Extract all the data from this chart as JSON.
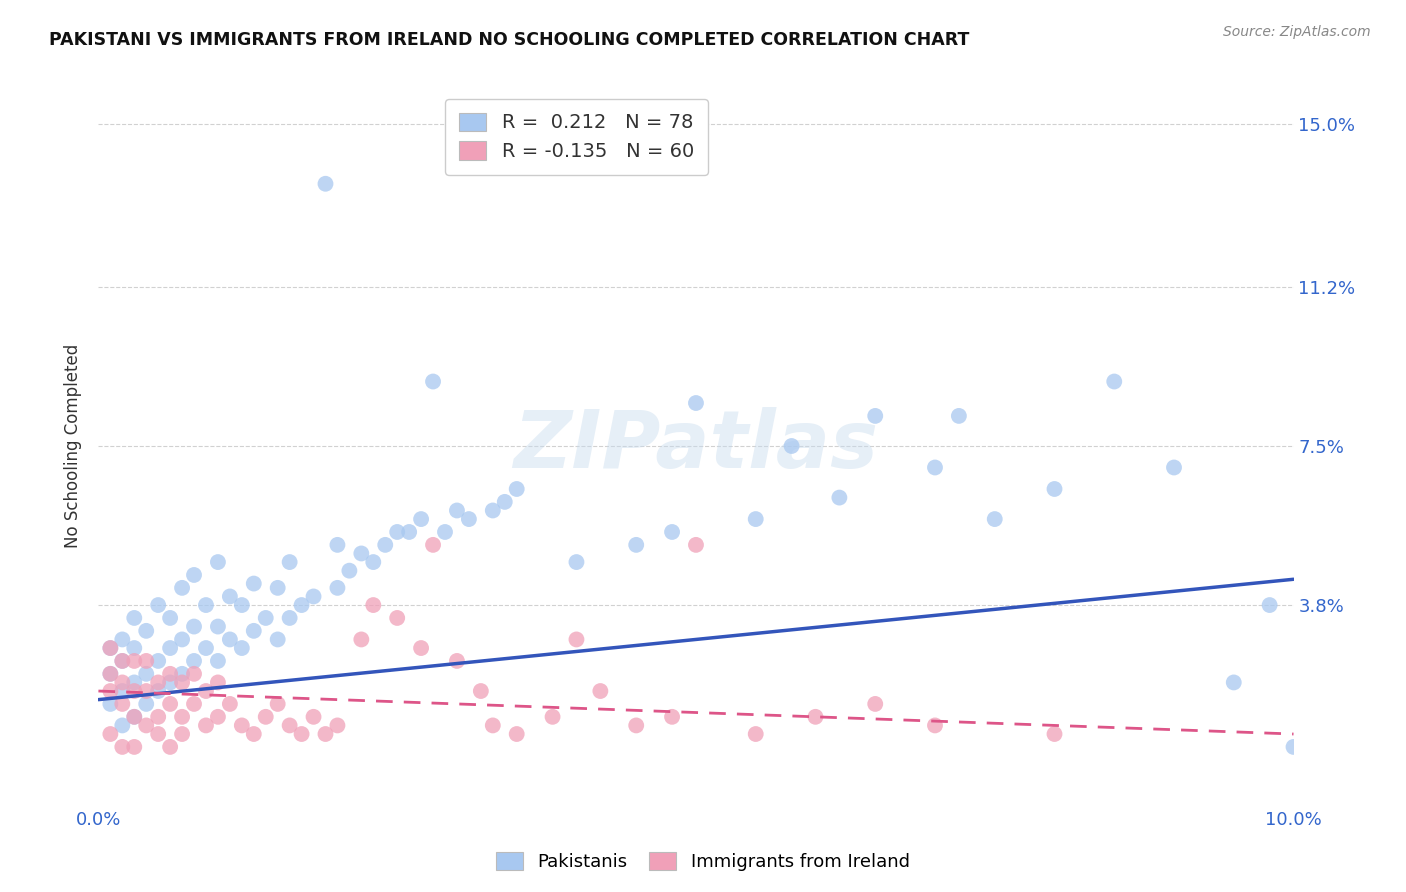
{
  "title": "PAKISTANI VS IMMIGRANTS FROM IRELAND NO SCHOOLING COMPLETED CORRELATION CHART",
  "source": "Source: ZipAtlas.com",
  "ylabel": "No Schooling Completed",
  "xlim": [
    0.0,
    0.1
  ],
  "ylim": [
    -0.008,
    0.158
  ],
  "right_yticks": [
    0.15,
    0.112,
    0.075,
    0.038
  ],
  "right_yticklabels": [
    "15.0%",
    "11.2%",
    "7.5%",
    "3.8%"
  ],
  "xticks": [
    0.0,
    0.02,
    0.04,
    0.06,
    0.08,
    0.1
  ],
  "xticklabels": [
    "0.0%",
    "",
    "",
    "",
    "",
    "10.0%"
  ],
  "blue_color": "#A8C8F0",
  "pink_color": "#F0A0B8",
  "blue_line_color": "#3355BB",
  "pink_line_color": "#DD5588",
  "watermark": "ZIPatlas",
  "blue_scatter_x": [
    0.001,
    0.001,
    0.001,
    0.002,
    0.002,
    0.002,
    0.002,
    0.003,
    0.003,
    0.003,
    0.003,
    0.004,
    0.004,
    0.004,
    0.005,
    0.005,
    0.005,
    0.006,
    0.006,
    0.006,
    0.007,
    0.007,
    0.007,
    0.008,
    0.008,
    0.008,
    0.009,
    0.009,
    0.01,
    0.01,
    0.01,
    0.011,
    0.011,
    0.012,
    0.012,
    0.013,
    0.013,
    0.014,
    0.015,
    0.015,
    0.016,
    0.016,
    0.017,
    0.018,
    0.019,
    0.02,
    0.02,
    0.021,
    0.022,
    0.023,
    0.024,
    0.025,
    0.026,
    0.027,
    0.028,
    0.029,
    0.03,
    0.031,
    0.033,
    0.034,
    0.035,
    0.04,
    0.045,
    0.048,
    0.05,
    0.055,
    0.058,
    0.062,
    0.065,
    0.07,
    0.072,
    0.075,
    0.08,
    0.085,
    0.09,
    0.095,
    0.098,
    0.1
  ],
  "blue_scatter_y": [
    0.015,
    0.022,
    0.028,
    0.01,
    0.018,
    0.025,
    0.03,
    0.012,
    0.02,
    0.028,
    0.035,
    0.015,
    0.022,
    0.032,
    0.018,
    0.025,
    0.038,
    0.02,
    0.028,
    0.035,
    0.022,
    0.03,
    0.042,
    0.025,
    0.033,
    0.045,
    0.028,
    0.038,
    0.025,
    0.033,
    0.048,
    0.03,
    0.04,
    0.028,
    0.038,
    0.032,
    0.043,
    0.035,
    0.03,
    0.042,
    0.035,
    0.048,
    0.038,
    0.04,
    0.136,
    0.042,
    0.052,
    0.046,
    0.05,
    0.048,
    0.052,
    0.055,
    0.055,
    0.058,
    0.09,
    0.055,
    0.06,
    0.058,
    0.06,
    0.062,
    0.065,
    0.048,
    0.052,
    0.055,
    0.085,
    0.058,
    0.075,
    0.063,
    0.082,
    0.07,
    0.082,
    0.058,
    0.065,
    0.09,
    0.07,
    0.02,
    0.038,
    0.005
  ],
  "pink_scatter_x": [
    0.001,
    0.001,
    0.001,
    0.001,
    0.002,
    0.002,
    0.002,
    0.002,
    0.003,
    0.003,
    0.003,
    0.003,
    0.004,
    0.004,
    0.004,
    0.005,
    0.005,
    0.005,
    0.006,
    0.006,
    0.006,
    0.007,
    0.007,
    0.007,
    0.008,
    0.008,
    0.009,
    0.009,
    0.01,
    0.01,
    0.011,
    0.012,
    0.013,
    0.014,
    0.015,
    0.016,
    0.017,
    0.018,
    0.019,
    0.02,
    0.022,
    0.023,
    0.025,
    0.027,
    0.028,
    0.03,
    0.032,
    0.033,
    0.035,
    0.038,
    0.04,
    0.042,
    0.045,
    0.048,
    0.05,
    0.055,
    0.06,
    0.065,
    0.07,
    0.08
  ],
  "pink_scatter_y": [
    0.018,
    0.022,
    0.028,
    0.008,
    0.015,
    0.02,
    0.025,
    0.005,
    0.012,
    0.018,
    0.025,
    0.005,
    0.01,
    0.018,
    0.025,
    0.012,
    0.02,
    0.008,
    0.015,
    0.022,
    0.005,
    0.012,
    0.02,
    0.008,
    0.015,
    0.022,
    0.01,
    0.018,
    0.012,
    0.02,
    0.015,
    0.01,
    0.008,
    0.012,
    0.015,
    0.01,
    0.008,
    0.012,
    0.008,
    0.01,
    0.03,
    0.038,
    0.035,
    0.028,
    0.052,
    0.025,
    0.018,
    0.01,
    0.008,
    0.012,
    0.03,
    0.018,
    0.01,
    0.012,
    0.052,
    0.008,
    0.012,
    0.015,
    0.01,
    0.008
  ],
  "blue_line_x": [
    0.0,
    0.1
  ],
  "blue_line_y": [
    0.016,
    0.044
  ],
  "pink_line_x": [
    0.0,
    0.1
  ],
  "pink_line_y": [
    0.018,
    0.008
  ],
  "background_color": "#FFFFFF",
  "grid_color": "#CCCCCC"
}
